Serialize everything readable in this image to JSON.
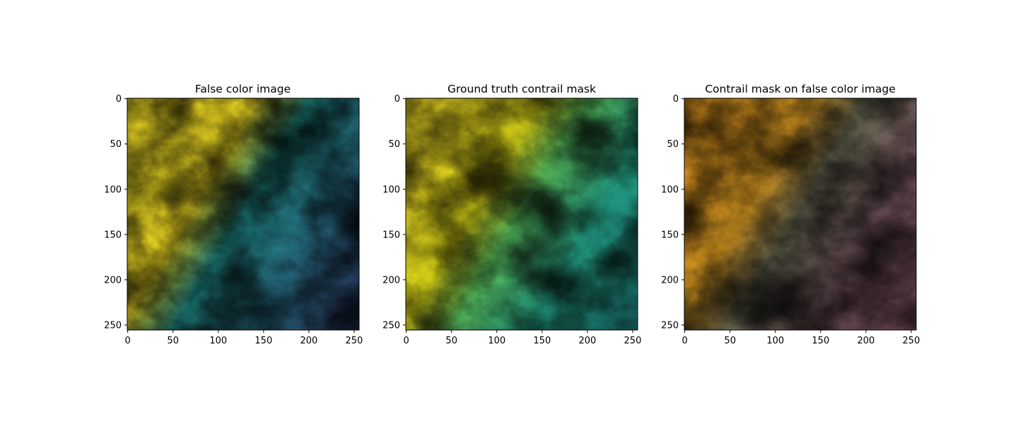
{
  "chart_data": [
    {
      "type": "heatmap",
      "title": "False color image",
      "colormap": "viridis",
      "xlim": [
        0,
        255
      ],
      "ylim": [
        255,
        0
      ],
      "xticks": [
        0,
        50,
        100,
        150,
        200,
        250
      ],
      "yticks": [
        0,
        50,
        100,
        150,
        200,
        250
      ],
      "xtick_labels": [
        "0",
        "50",
        "100",
        "150",
        "200",
        "250"
      ],
      "ytick_labels": [
        "0",
        "50",
        "100",
        "150",
        "200",
        "250"
      ],
      "xlabel": "",
      "ylabel": ""
    },
    {
      "type": "heatmap",
      "title": "Ground truth contrail mask",
      "colormap": "viridis",
      "xlim": [
        0,
        255
      ],
      "ylim": [
        255,
        0
      ],
      "xticks": [
        0,
        50,
        100,
        150,
        200,
        250
      ],
      "yticks": [
        0,
        50,
        100,
        150,
        200,
        250
      ],
      "xtick_labels": [
        "0",
        "50",
        "100",
        "150",
        "200",
        "250"
      ],
      "ytick_labels": [
        "0",
        "50",
        "100",
        "150",
        "200",
        "250"
      ],
      "xlabel": "",
      "ylabel": ""
    },
    {
      "type": "heatmap",
      "title": "Contrail mask on false color image",
      "colormap": "false-color overlay",
      "xlim": [
        0,
        255
      ],
      "ylim": [
        255,
        0
      ],
      "xticks": [
        0,
        50,
        100,
        150,
        200,
        250
      ],
      "yticks": [
        0,
        50,
        100,
        150,
        200,
        250
      ],
      "xtick_labels": [
        "0",
        "50",
        "100",
        "150",
        "200",
        "250"
      ],
      "ytick_labels": [
        "0",
        "50",
        "100",
        "150",
        "200",
        "250"
      ],
      "xlabel": "",
      "ylabel": ""
    }
  ],
  "palettes": {
    "viridis": [
      "#440154",
      "#3b528b",
      "#21918c",
      "#5ec962",
      "#fde725"
    ],
    "overlay": [
      "#7a1f48",
      "#8a5a68",
      "#6f7060",
      "#c08a2a",
      "#f5a623"
    ]
  }
}
